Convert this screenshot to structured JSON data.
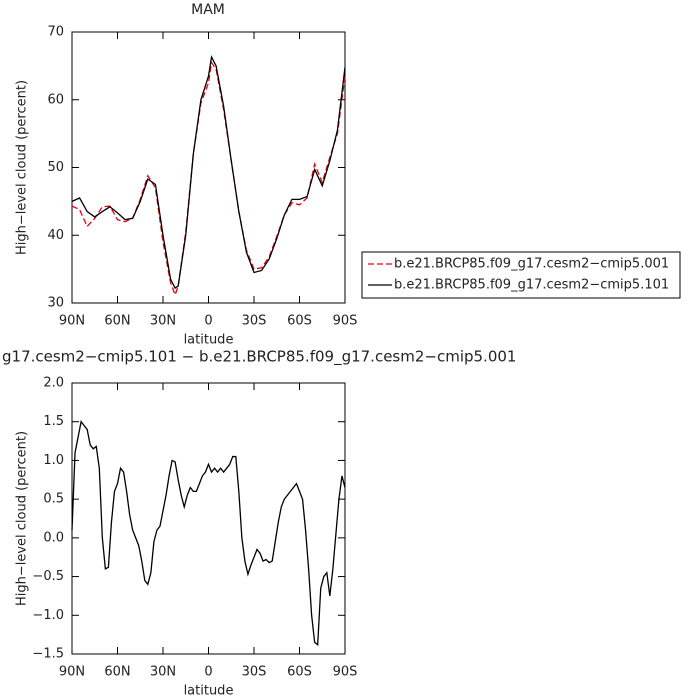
{
  "chart_data": [
    {
      "type": "line",
      "title": "MAM",
      "xlabel": "latitude",
      "ylabel": "High−level cloud (percent)",
      "x": [
        90,
        85,
        80,
        75,
        70,
        65,
        60,
        55,
        50,
        45,
        40,
        35,
        30,
        25,
        22,
        20,
        15,
        10,
        5,
        0,
        -2,
        -5,
        -10,
        -15,
        -20,
        -25,
        -30,
        -35,
        -40,
        -45,
        -50,
        -55,
        -60,
        -65,
        -70,
        -75,
        -80,
        -85,
        -90
      ],
      "series": [
        {
          "name": "b.e21.BRCP85.f09_g17.cesm2−cmip5.001",
          "color": "#e8000b",
          "line_style": "dashed",
          "values": [
            44.3,
            43.8,
            41.3,
            42.5,
            44.2,
            44.3,
            42.3,
            42,
            42.5,
            45.3,
            48.8,
            47,
            39,
            33,
            31.2,
            32.5,
            40.5,
            52,
            59.5,
            62.5,
            65.5,
            64.5,
            58.5,
            51,
            43.5,
            37.8,
            35,
            35.2,
            36.8,
            39.8,
            43,
            44.8,
            44.5,
            45.5,
            50.5,
            47.8,
            51.5,
            55,
            63.5
          ]
        },
        {
          "name": "b.e21.BRCP85.f09_g17.cesm2−cmip5.101",
          "color": "#000000",
          "line_style": "solid",
          "values": [
            45,
            45.5,
            43.5,
            42.7,
            43.5,
            44.2,
            43.3,
            42.3,
            42.5,
            45,
            48.3,
            47.5,
            40,
            33.5,
            32.2,
            32.5,
            40,
            52,
            60,
            63.5,
            66.3,
            65,
            59,
            51,
            43.5,
            37.5,
            34.5,
            34.8,
            36.5,
            39.5,
            43,
            45.3,
            45.3,
            45.7,
            49.7,
            47.3,
            51,
            55.5,
            64.8
          ]
        }
      ],
      "xlim": [
        90,
        -90
      ],
      "xticks": [
        {
          "value": 90,
          "label": "90N"
        },
        {
          "value": 60,
          "label": "60N"
        },
        {
          "value": 30,
          "label": "30N"
        },
        0,
        {
          "value": -30,
          "label": "30S"
        },
        {
          "value": -60,
          "label": "60S"
        },
        {
          "value": -90,
          "label": "90S"
        }
      ],
      "ylim": [
        30,
        70
      ],
      "yticks": [
        30,
        40,
        50,
        60,
        70
      ],
      "legend": "right"
    },
    {
      "type": "line",
      "title": "g17.cesm2−cmip5.101 − b.e21.BRCP85.f09_g17.cesm2−cmip5.001",
      "xlabel": "latitude",
      "ylabel": "High−level cloud (percent)",
      "x": [
        90,
        88,
        86,
        84,
        82,
        80,
        78,
        76,
        74,
        72,
        70,
        68,
        66,
        64,
        62,
        60,
        58,
        56,
        54,
        52,
        50,
        48,
        46,
        44,
        42,
        40,
        38,
        36,
        34,
        32,
        30,
        28,
        26,
        24,
        22,
        20,
        18,
        16,
        14,
        12,
        10,
        8,
        6,
        4,
        2,
        0,
        -2,
        -4,
        -6,
        -8,
        -10,
        -12,
        -14,
        -16,
        -18,
        -20,
        -22,
        -24,
        -26,
        -28,
        -30,
        -32,
        -34,
        -36,
        -38,
        -40,
        -42,
        -44,
        -46,
        -48,
        -50,
        -52,
        -54,
        -56,
        -58,
        -60,
        -62,
        -64,
        -66,
        -68,
        -70,
        -72,
        -74,
        -76,
        -78,
        -80,
        -82,
        -84,
        -86,
        -88,
        -90
      ],
      "series": [
        {
          "color": "#000000",
          "line_style": "solid",
          "values": [
            0.1,
            1.1,
            1.3,
            1.5,
            1.45,
            1.4,
            1.2,
            1.15,
            1.18,
            0.9,
            0.0,
            -0.4,
            -0.38,
            0.2,
            0.6,
            0.7,
            0.9,
            0.85,
            0.6,
            0.3,
            0.1,
            0.0,
            -0.1,
            -0.3,
            -0.55,
            -0.6,
            -0.45,
            -0.05,
            0.1,
            0.15,
            0.35,
            0.55,
            0.8,
            1.0,
            0.98,
            0.75,
            0.55,
            0.4,
            0.55,
            0.65,
            0.6,
            0.6,
            0.7,
            0.8,
            0.85,
            0.95,
            0.85,
            0.9,
            0.85,
            0.9,
            0.85,
            0.9,
            0.95,
            1.05,
            1.05,
            0.6,
            0.0,
            -0.3,
            -0.47,
            -0.35,
            -0.25,
            -0.15,
            -0.2,
            -0.3,
            -0.28,
            -0.32,
            -0.3,
            -0.05,
            0.2,
            0.4,
            0.5,
            0.55,
            0.6,
            0.65,
            0.7,
            0.6,
            0.5,
            0.1,
            -0.4,
            -1.0,
            -1.35,
            -1.38,
            -0.65,
            -0.5,
            -0.45,
            -0.75,
            -0.4,
            0.05,
            0.5,
            0.8,
            0.65
          ]
        }
      ],
      "xlim": [
        90,
        -90
      ],
      "xticks": [
        {
          "value": 90,
          "label": "90N"
        },
        {
          "value": 60,
          "label": "60N"
        },
        {
          "value": 30,
          "label": "30N"
        },
        0,
        {
          "value": -30,
          "label": "30S"
        },
        {
          "value": -60,
          "label": "60S"
        },
        {
          "value": -90,
          "label": "90S"
        }
      ],
      "ylim": [
        -1.5,
        2
      ],
      "yticks": [
        {
          "value": -1.5,
          "label": "−1.5"
        },
        {
          "value": -1,
          "label": "−1.0"
        },
        {
          "value": -0.5,
          "label": "−0.5"
        },
        {
          "value": 0,
          "label": "0.0"
        },
        {
          "value": 0.5,
          "label": "0.5"
        },
        {
          "value": 1,
          "label": "1.0"
        },
        {
          "value": 1.5,
          "label": "1.5"
        },
        {
          "value": 2,
          "label": "2.0"
        }
      ]
    }
  ]
}
